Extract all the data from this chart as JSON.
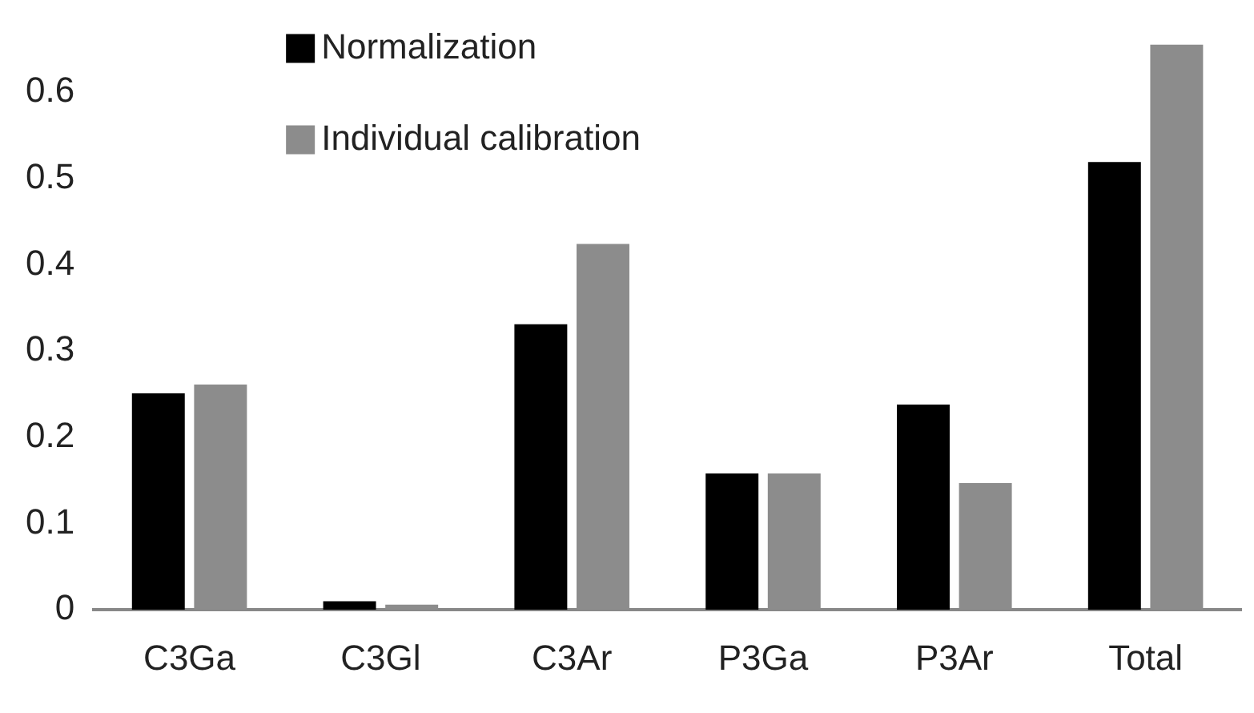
{
  "chart_data": {
    "type": "bar",
    "categories": [
      "C3Ga",
      "C3Gl",
      "C3Ar",
      "P3Ga",
      "P3Ar",
      "Total"
    ],
    "series": [
      {
        "name": "Normalization",
        "color": "#000000",
        "values": [
          0.251,
          0.01,
          0.331,
          0.158,
          0.238,
          0.519
        ]
      },
      {
        "name": "Individual calibration",
        "color": "#8c8c8c",
        "values": [
          0.261,
          0.006,
          0.424,
          0.158,
          0.147,
          0.655
        ]
      }
    ],
    "ylim": [
      0,
      0.66
    ],
    "yticks": [
      0,
      0.1,
      0.2,
      0.3,
      0.4,
      0.5,
      0.6
    ],
    "grid": false,
    "legend": "top left"
  }
}
